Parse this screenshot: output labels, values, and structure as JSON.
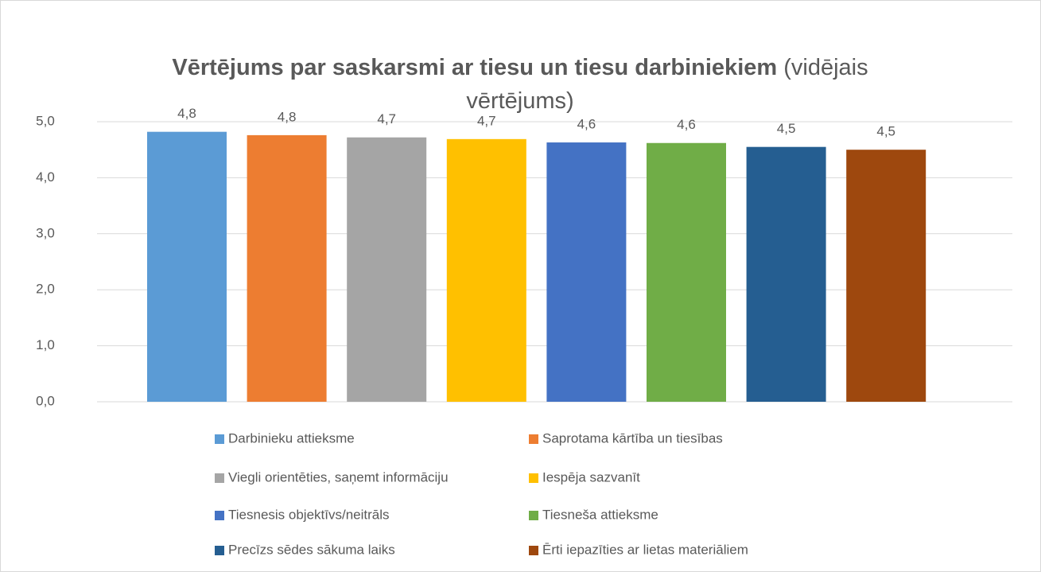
{
  "chart_data": {
    "type": "bar",
    "title": "Vērtējums par saskarsmi ar tiesu un tiesu darbiniekiem",
    "subtitle": "(vidējais vērtējums)",
    "series": [
      {
        "name": "Darbinieku attieksme",
        "color": "#5b9bd5",
        "values": [
          4.82
        ],
        "value_labels": [
          "4,8"
        ]
      },
      {
        "name": "Saprotama kārtība un tiesības",
        "color": "#ed7d31",
        "values": [
          4.76
        ],
        "value_labels": [
          "4,8"
        ]
      },
      {
        "name": "Viegli orientēties, saņemt informāciju",
        "color": "#a5a5a5",
        "values": [
          4.72
        ],
        "value_labels": [
          "4,7"
        ]
      },
      {
        "name": "Iespēja sazvanīt",
        "color": "#ffc000",
        "values": [
          4.69
        ],
        "value_labels": [
          "4,7"
        ]
      },
      {
        "name": "Tiesnesis objektīvs/neitrāls",
        "color": "#4472c4",
        "values": [
          4.63
        ],
        "value_labels": [
          "4,6"
        ]
      },
      {
        "name": "Tiesneša attieksme",
        "color": "#70ad47",
        "values": [
          4.62
        ],
        "value_labels": [
          "4,6"
        ]
      },
      {
        "name": "Precīzs sēdes sākuma laiks",
        "color": "#255e91",
        "values": [
          4.55
        ],
        "value_labels": [
          "4,5"
        ]
      },
      {
        "name": "Ērti iepazīties ar lietas materiāliem",
        "color": "#9e480e",
        "values": [
          4.5
        ],
        "value_labels": [
          "4,5"
        ]
      }
    ],
    "ylim": [
      0,
      5
    ],
    "yticks": [
      {
        "value": 0,
        "label": "0,0"
      },
      {
        "value": 1,
        "label": "1,0"
      },
      {
        "value": 2,
        "label": "2,0"
      },
      {
        "value": 3,
        "label": "3,0"
      },
      {
        "value": 4,
        "label": "4,0"
      },
      {
        "value": 5,
        "label": "5,0"
      }
    ],
    "grid": true,
    "legend": "bottom"
  }
}
